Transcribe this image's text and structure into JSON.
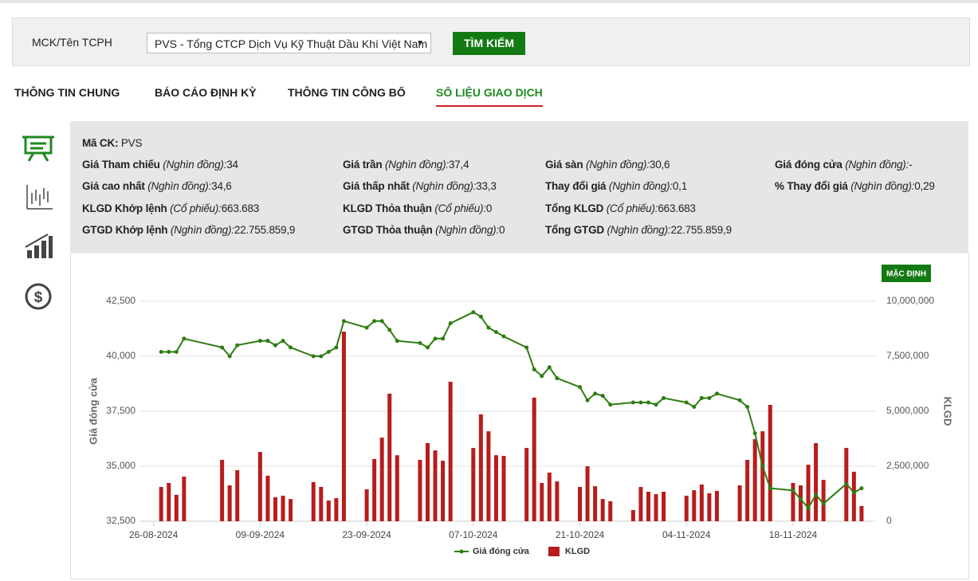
{
  "search": {
    "label": "MCK/Tên TCPH",
    "selected": "PVS - Tổng CTCP Dịch Vụ Kỹ Thuật Dầu Khí Việt Nam",
    "button": "TÌM KIẾM"
  },
  "tabs": [
    "THÔNG TIN CHUNG",
    "BÁO CÁO ĐỊNH KỲ",
    "THÔNG TIN CÔNG BỐ",
    "SỐ LIỆU GIAO DỊCH"
  ],
  "active_tab": 3,
  "info": {
    "code_label": "Mã CK:",
    "code": "PVS",
    "rows": [
      [
        {
          "label": "Giá Tham chiếu",
          "unit": "(Nghìn đồng):",
          "value": "34"
        },
        {
          "label": "Giá trần",
          "unit": "(Nghìn đồng):",
          "value": "37,4"
        },
        {
          "label": "Giá sàn",
          "unit": "(Nghìn đồng):",
          "value": "30,6"
        },
        {
          "label": "Giá đóng cửa",
          "unit": "(Nghìn đồng):",
          "value": "-"
        }
      ],
      [
        {
          "label": "Giá cao nhất",
          "unit": "(Nghìn đồng):",
          "value": "34,6"
        },
        {
          "label": "Giá thấp nhất",
          "unit": "(Nghìn đồng):",
          "value": "33,3"
        },
        {
          "label": "Thay đổi giá",
          "unit": "(Nghìn đồng):",
          "value": "0,1"
        },
        {
          "label": "% Thay đổi giá",
          "unit": "(Nghìn đồng):",
          "value": "0,29"
        }
      ],
      [
        {
          "label": "KLGD Khớp lệnh",
          "unit": "(Cổ phiếu):",
          "value": "663.683"
        },
        {
          "label": "KLGD Thỏa thuận",
          "unit": "(Cổ phiếu):",
          "value": "0"
        },
        {
          "label": "Tổng KLGD",
          "unit": "(Cổ phiếu):",
          "value": "663.683"
        }
      ],
      [
        {
          "label": "GTGD Khớp lệnh",
          "unit": "(Nghìn đồng):",
          "value": "22.755.859,9"
        },
        {
          "label": "GTGD Thỏa thuận",
          "unit": "(Nghìn đồng):",
          "value": "0"
        },
        {
          "label": "Tổng GTGD",
          "unit": "(Nghìn đồng):",
          "value": "22.755.859,9"
        }
      ]
    ]
  },
  "chart_toolbar": {
    "button": "MẶC ĐỊNH"
  },
  "chart_data": {
    "type": "combo",
    "ylabel": "Giá đóng cửa",
    "y2label": "KLGD",
    "x": [
      "27-08-2024",
      "28-08-2024",
      "29-08-2024",
      "30-08-2024",
      "04-09-2024",
      "05-09-2024",
      "06-09-2024",
      "09-09-2024",
      "10-09-2024",
      "11-09-2024",
      "12-09-2024",
      "13-09-2024",
      "16-09-2024",
      "17-09-2024",
      "18-09-2024",
      "19-09-2024",
      "20-09-2024",
      "23-09-2024",
      "24-09-2024",
      "25-09-2024",
      "26-09-2024",
      "27-09-2024",
      "30-09-2024",
      "01-10-2024",
      "02-10-2024",
      "03-10-2024",
      "04-10-2024",
      "07-10-2024",
      "08-10-2024",
      "09-10-2024",
      "10-10-2024",
      "11-10-2024",
      "14-10-2024",
      "15-10-2024",
      "16-10-2024",
      "17-10-2024",
      "18-10-2024",
      "21-10-2024",
      "22-10-2024",
      "23-10-2024",
      "24-10-2024",
      "25-10-2024",
      "28-10-2024",
      "29-10-2024",
      "30-10-2024",
      "31-10-2024",
      "01-11-2024",
      "04-11-2024",
      "05-11-2024",
      "06-11-2024",
      "07-11-2024",
      "08-11-2024",
      "11-11-2024",
      "12-11-2024",
      "13-11-2024",
      "14-11-2024",
      "15-11-2024",
      "18-11-2024",
      "19-11-2024",
      "20-11-2024",
      "21-11-2024",
      "22-11-2024",
      "25-11-2024",
      "26-11-2024",
      "27-11-2024"
    ],
    "series": [
      {
        "name": "Giá đóng cửa",
        "type": "line",
        "color": "#2e7d12",
        "values": [
          40200,
          40200,
          40200,
          40800,
          40400,
          40000,
          40500,
          40700,
          40700,
          40500,
          40700,
          40400,
          40000,
          40000,
          40200,
          40400,
          41600,
          41300,
          41600,
          41600,
          41200,
          40700,
          40600,
          40400,
          40800,
          40800,
          41500,
          42000,
          41800,
          41300,
          41100,
          40900,
          40400,
          39400,
          39100,
          39500,
          39000,
          38600,
          38000,
          38300,
          38200,
          37800,
          37900,
          37900,
          37900,
          37800,
          38100,
          37900,
          37700,
          38100,
          38100,
          38300,
          38000,
          37700,
          36500,
          35000,
          34000,
          33900,
          33500,
          33100,
          33700,
          33300,
          34200,
          33800,
          34000
        ]
      },
      {
        "name": "KLGD",
        "type": "bar",
        "axis": "y2",
        "color": "#b81c1c",
        "values": [
          1560000,
          1740000,
          1200000,
          2030000,
          2790000,
          1630000,
          2320000,
          3150000,
          2070000,
          1090000,
          1160000,
          1010000,
          1780000,
          1560000,
          940000,
          1050000,
          8620000,
          1450000,
          2830000,
          3800000,
          5800000,
          3000000,
          2790000,
          3550000,
          3220000,
          2750000,
          6340000,
          3330000,
          4860000,
          4090000,
          3000000,
          2970000,
          3330000,
          5620000,
          1740000,
          2210000,
          1810000,
          1560000,
          2500000,
          1590000,
          1010000,
          910000,
          510000,
          1560000,
          1340000,
          1230000,
          1340000,
          1160000,
          1410000,
          1670000,
          1270000,
          1380000,
          1630000,
          2790000,
          3730000,
          4090000,
          5290000,
          1740000,
          1630000,
          2570000,
          3550000,
          1880000,
          3330000,
          2250000,
          690000
        ]
      }
    ],
    "xlim": [
      "23-08-2024",
      "29-11-2024"
    ],
    "xticks": [
      "26-08-2024",
      "09-09-2024",
      "23-09-2024",
      "07-10-2024",
      "21-10-2024",
      "04-11-2024",
      "18-11-2024"
    ],
    "ylim": [
      32500,
      42500
    ],
    "yticks": [
      {
        "value": 32500,
        "label": "32,500"
      },
      {
        "value": 35000,
        "label": "35,000"
      },
      {
        "value": 37500,
        "label": "37,500"
      },
      {
        "value": 40000,
        "label": "40,000"
      },
      {
        "value": 42500,
        "label": "42,500"
      }
    ],
    "y2lim": [
      0,
      10000000
    ],
    "y2ticks": [
      0,
      {
        "value": 2500000,
        "label": "2,500,000"
      },
      {
        "value": 5000000,
        "label": "5,000,000"
      },
      {
        "value": 7500000,
        "label": "7,500,000"
      },
      {
        "value": 10000000,
        "label": "10,000,000"
      }
    ],
    "grid": true
  }
}
